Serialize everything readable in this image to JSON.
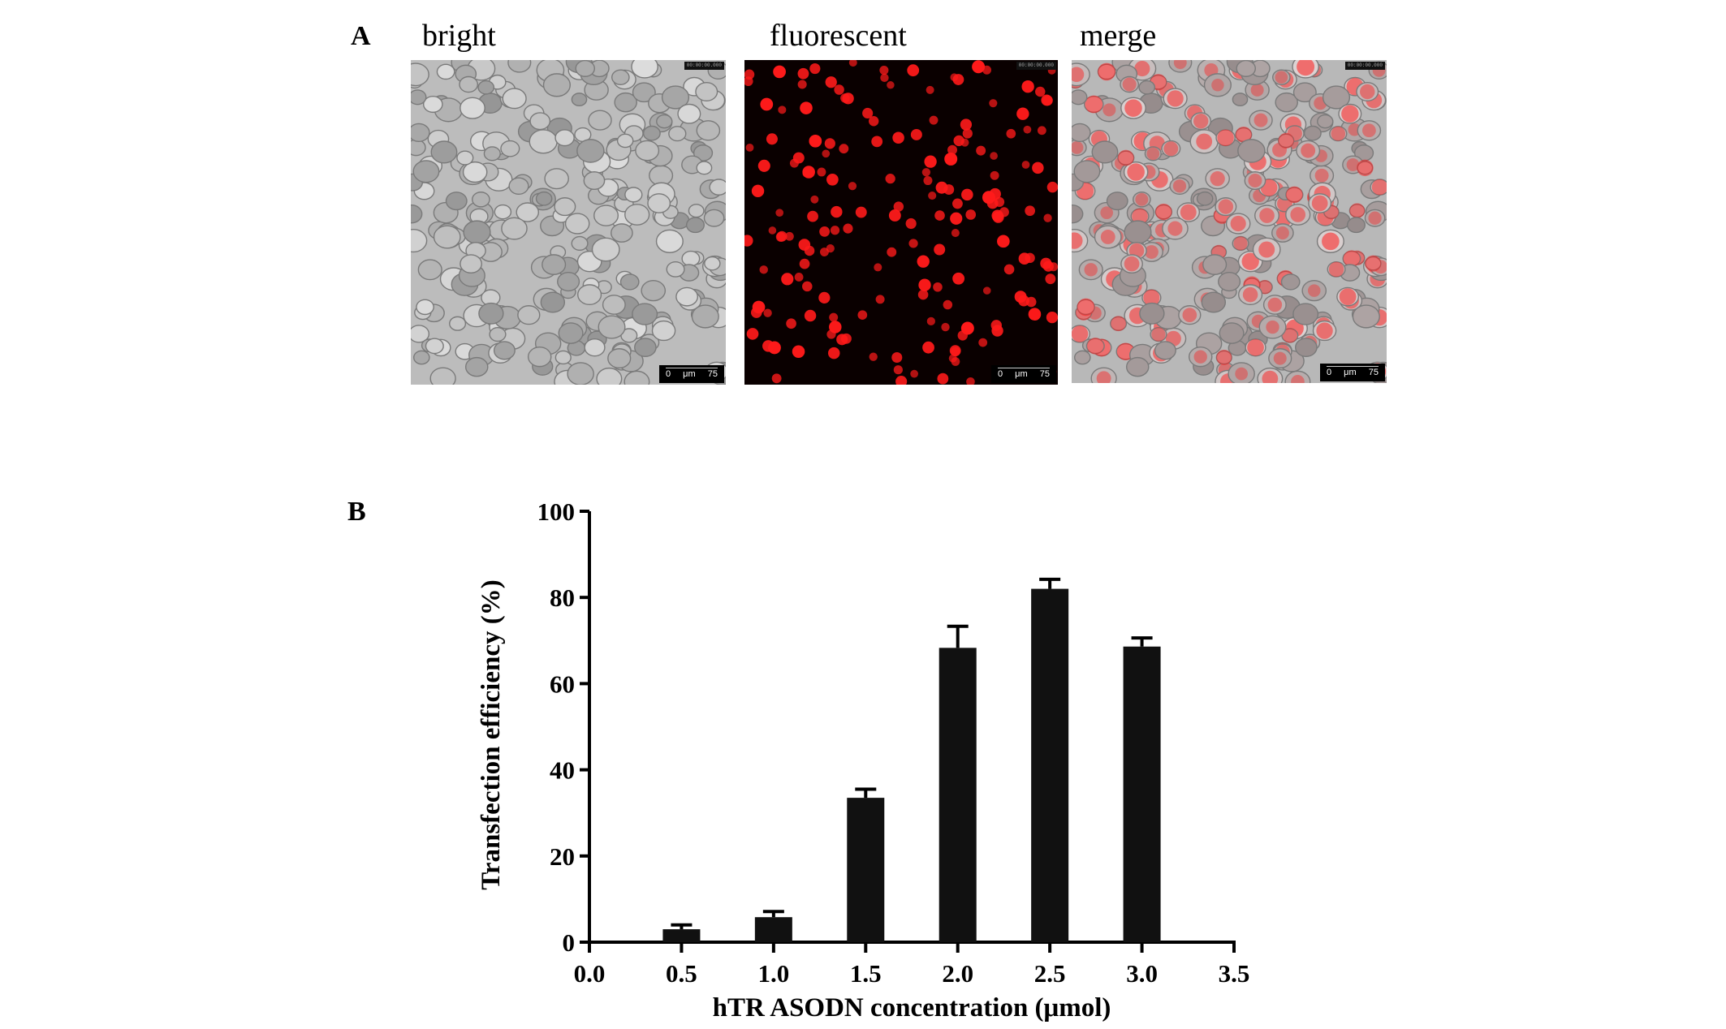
{
  "panels": {
    "a_label": "A",
    "b_label": "B"
  },
  "micrographs": [
    {
      "id": "bright",
      "title": "bright",
      "scale_start": "0",
      "scale_unit": "μm",
      "scale_end": "75",
      "timestamp": "00:00:00.000"
    },
    {
      "id": "fluorescent",
      "title": "fluorescent",
      "scale_start": "0",
      "scale_unit": "μm",
      "scale_end": "75",
      "timestamp": "00:00:00.000"
    },
    {
      "id": "merge",
      "title": "merge",
      "scale_start": "0",
      "scale_unit": "μm",
      "scale_end": "75",
      "timestamp": "00:00:00.000"
    }
  ],
  "colors": {
    "bar": "#111111",
    "fluor": "#ff1a1a",
    "bright_bg": "#b9b9b9"
  },
  "chart_data": {
    "type": "bar",
    "xlabel": "hTR ASODN concentration (μmol)",
    "ylabel": "Transfection efficiency (%)",
    "x": [
      0.5,
      1.0,
      1.5,
      2.0,
      2.5,
      3.0
    ],
    "values": [
      3.0,
      5.8,
      33.5,
      68.3,
      82.0,
      68.6
    ],
    "errors": [
      1.0,
      1.3,
      2.0,
      5.0,
      2.2,
      2.0
    ],
    "xlim": [
      0.0,
      3.5
    ],
    "ylim": [
      0,
      100
    ],
    "xticks": [
      "0.0",
      "0.5",
      "1.0",
      "1.5",
      "2.0",
      "2.5",
      "3.0",
      "3.5"
    ],
    "yticks": [
      "0",
      "20",
      "40",
      "60",
      "80",
      "100"
    ],
    "grid": false,
    "legend": false
  }
}
